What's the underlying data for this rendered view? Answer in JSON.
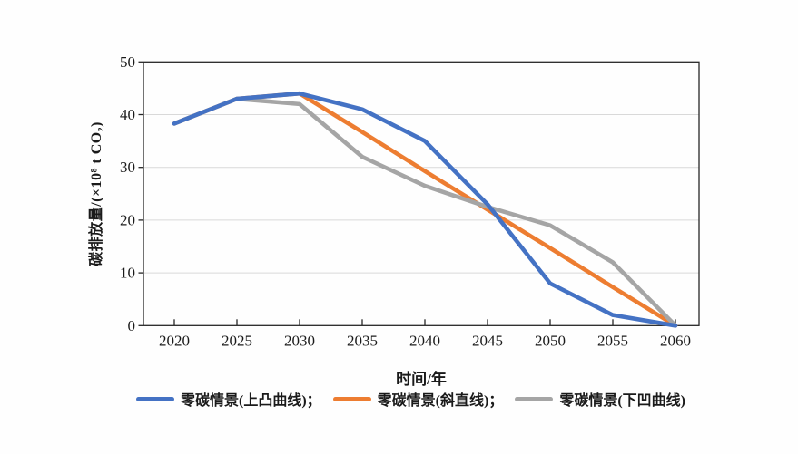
{
  "chart_data": {
    "type": "line",
    "x": [
      2020,
      2025,
      2030,
      2035,
      2040,
      2045,
      2050,
      2055,
      2060
    ],
    "series": [
      {
        "name": "零碳情景(上凸曲线)",
        "color": "#4472C4",
        "values": [
          38.3,
          43,
          44,
          41,
          35,
          23,
          8,
          2,
          0
        ]
      },
      {
        "name": "零碳情景(斜直线)",
        "color": "#ED7D31",
        "values": [
          38.3,
          43,
          44,
          36.7,
          29.3,
          22,
          14.7,
          7.3,
          0
        ]
      },
      {
        "name": "零碳情景(下凹曲线)",
        "color": "#A5A5A5",
        "values": [
          38.3,
          43,
          42,
          32,
          26.5,
          22.5,
          19,
          12,
          0
        ]
      }
    ],
    "title": "",
    "xlabel": "时间/年",
    "ylabel": "碳排放量/(×10⁸ t CO₂)",
    "ylim": [
      0,
      50
    ],
    "yticks": [
      0,
      10,
      20,
      30,
      40,
      50
    ],
    "grid": "horizontal",
    "legend_position": "bottom",
    "colors": {
      "grid": "#d9d9d9",
      "axis_border": "#262626",
      "tick_text": "#1a1a1a",
      "background": "#fefefe"
    }
  },
  "legend": {
    "items": [
      {
        "label": "零碳情景(上凸曲线)；",
        "color": "#4472C4"
      },
      {
        "label": "零碳情景(斜直线)；",
        "color": "#ED7D31"
      },
      {
        "label": "零碳情景(下凹曲线)",
        "color": "#A5A5A5"
      }
    ]
  }
}
